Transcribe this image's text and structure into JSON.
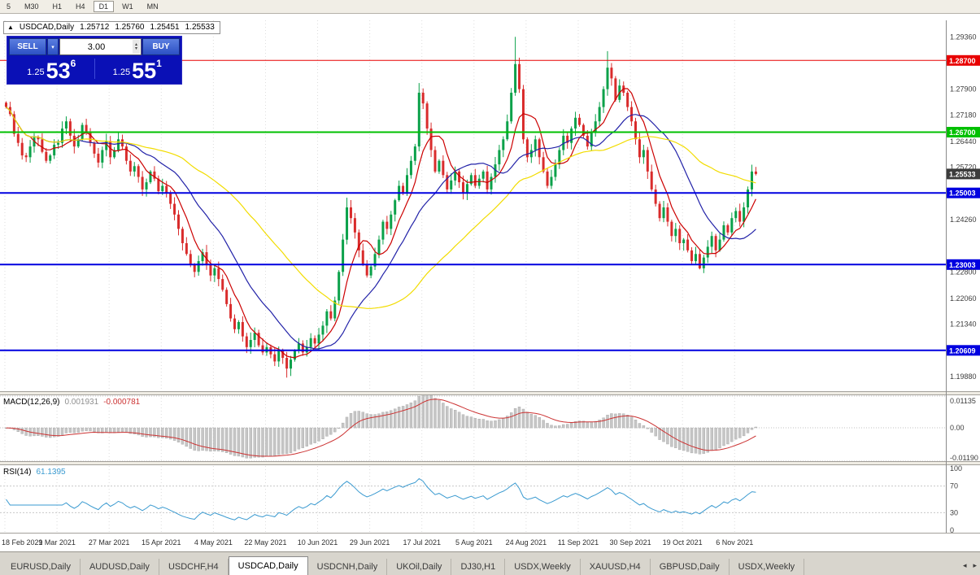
{
  "toolbar": {
    "timeframes": [
      "5",
      "M30",
      "H1",
      "H4",
      "D1",
      "W1",
      "MN"
    ],
    "active": "D1"
  },
  "chart_header": {
    "marker": "▲",
    "symbol": "USDCAD,Daily",
    "open": "1.25712",
    "high": "1.25760",
    "low": "1.25451",
    "close": "1.25533"
  },
  "trade_panel": {
    "sell_label": "SELL",
    "buy_label": "BUY",
    "volume": "3.00",
    "sell_price_prefix": "1.25",
    "sell_price_big": "53",
    "sell_price_sup": "6",
    "buy_price_prefix": "1.25",
    "buy_price_big": "55",
    "buy_price_sup": "1",
    "panel_color": "#0a10b6",
    "button_color": "#2c50c4"
  },
  "price_axis": {
    "ticks": [
      {
        "value": 1.2936,
        "label": "1.29360"
      },
      {
        "value": 1.279,
        "label": "1.27900"
      },
      {
        "value": 1.2718,
        "label": "1.27180"
      },
      {
        "value": 1.2644,
        "label": "1.26440"
      },
      {
        "value": 1.2572,
        "label": "1.25720"
      },
      {
        "value": 1.2426,
        "label": "1.24260"
      },
      {
        "value": 1.228,
        "label": "1.22800"
      },
      {
        "value": 1.2206,
        "label": "1.22060"
      },
      {
        "value": 1.2134,
        "label": "1.21340"
      },
      {
        "value": 1.1988,
        "label": "1.19880"
      }
    ]
  },
  "levels": [
    {
      "value": 1.287,
      "label": "1.28700",
      "color": "#e80000",
      "width": 1
    },
    {
      "value": 1.267,
      "label": "1.26700",
      "color": "#00c000",
      "width": 2
    },
    {
      "value": 1.25003,
      "label": "1.25003",
      "color": "#0000e0",
      "width": 2
    },
    {
      "value": 1.23003,
      "label": "1.23003",
      "color": "#0000e0",
      "width": 2
    },
    {
      "value": 1.20609,
      "label": "1.20609",
      "color": "#0000e0",
      "width": 2
    }
  ],
  "current_price": {
    "value": 1.25533,
    "label": "1.25533",
    "badge_color": "#3c3c3c"
  },
  "chart_data": {
    "type": "candlestick",
    "symbol": "USDCAD",
    "timeframe": "Daily",
    "title": "USDCAD,Daily",
    "ylim": [
      1.1947,
      1.2982
    ],
    "x_labels": [
      "18 Feb 2021",
      "9 Mar 2021",
      "27 Mar 2021",
      "15 Apr 2021",
      "4 May 2021",
      "22 May 2021",
      "10 Jun 2021",
      "29 Jun 2021",
      "17 Jul 2021",
      "5 Aug 2021",
      "24 Aug 2021",
      "11 Sep 2021",
      "30 Sep 2021",
      "19 Oct 2021",
      "6 Nov 2021"
    ],
    "bars_per_label": 13,
    "closes": [
      1.274,
      1.272,
      1.2665,
      1.264,
      1.2605,
      1.26,
      1.263,
      1.2655,
      1.265,
      1.2615,
      1.259,
      1.2605,
      1.2635,
      1.264,
      1.268,
      1.27,
      1.266,
      1.263,
      1.265,
      1.269,
      1.267,
      1.264,
      1.261,
      1.2585,
      1.262,
      1.2645,
      1.26,
      1.262,
      1.265,
      1.263,
      1.259,
      1.256,
      1.2575,
      1.2545,
      1.251,
      1.253,
      1.256,
      1.254,
      1.2505,
      1.252,
      1.25,
      1.247,
      1.244,
      1.24,
      1.236,
      1.233,
      1.23,
      1.228,
      1.231,
      1.2335,
      1.23,
      1.227,
      1.229,
      1.226,
      1.223,
      1.219,
      1.215,
      1.212,
      1.214,
      1.21,
      1.207,
      1.209,
      1.211,
      1.2075,
      1.2055,
      1.207,
      1.205,
      1.203,
      1.206,
      1.204,
      1.201,
      1.2035,
      1.206,
      1.208,
      1.2055,
      1.207,
      1.2095,
      1.208,
      1.2105,
      1.213,
      1.217,
      1.215,
      1.22,
      1.228,
      1.237,
      1.246,
      1.243,
      1.239,
      1.234,
      1.23,
      1.227,
      1.2295,
      1.233,
      1.237,
      1.242,
      1.24,
      1.244,
      1.248,
      1.252,
      1.25,
      1.255,
      1.259,
      1.263,
      1.278,
      1.275,
      1.268,
      1.262,
      1.256,
      1.259,
      1.255,
      1.251,
      1.2535,
      1.256,
      1.253,
      1.25,
      1.2525,
      1.255,
      1.252,
      1.254,
      1.256,
      1.251,
      1.2545,
      1.258,
      1.262,
      1.265,
      1.27,
      1.278,
      1.286,
      1.279,
      1.265,
      1.26,
      1.262,
      1.265,
      1.26,
      1.256,
      1.252,
      1.2545,
      1.258,
      1.262,
      1.266,
      1.264,
      1.268,
      1.271,
      1.269,
      1.266,
      1.263,
      1.267,
      1.27,
      1.274,
      1.279,
      1.285,
      1.282,
      1.276,
      1.28,
      1.278,
      1.274,
      1.27,
      1.265,
      1.26,
      1.262,
      1.256,
      1.251,
      1.247,
      1.243,
      1.246,
      1.242,
      1.238,
      1.24,
      1.236,
      1.237,
      1.234,
      1.231,
      1.233,
      1.229,
      1.232,
      1.235,
      1.238,
      1.234,
      1.237,
      1.241,
      1.239,
      1.243,
      1.245,
      1.242,
      1.246,
      1.251,
      1.256,
      1.25533
    ],
    "wick_highs": {
      "85": 1.2487,
      "103": 1.2807,
      "127": 1.2936,
      "150": 1.2896
    },
    "wick_lows": {
      "47": 1.2265,
      "70": 1.1985,
      "173": 1.2287
    },
    "up_color": "#0ba14a",
    "down_color": "#d92c2c",
    "moving_averages": [
      {
        "name": "fast",
        "period": 7,
        "color": "#cc0000"
      },
      {
        "name": "mid",
        "period": 19,
        "color": "#2222a8"
      },
      {
        "name": "slow",
        "period": 45,
        "color": "#f2dc00"
      }
    ]
  },
  "indicators": {
    "macd": {
      "label": "MACD(12,26,9)",
      "value_main": "0.001931",
      "value_signal": "-0.000781",
      "fast": 12,
      "slow": 26,
      "signal_period": 9,
      "axis_labels": [
        "0.01135",
        "0.00",
        "-0.01190"
      ],
      "ymax": 0.01135,
      "ymin": -0.0119,
      "histogram_color": "#c6c6c6",
      "signal_color": "#cc3333"
    },
    "rsi": {
      "label": "RSI(14)",
      "value": "61.1395",
      "period": 14,
      "axis_labels": [
        "100",
        "70",
        "30",
        "0"
      ],
      "guide_levels": [
        70,
        30
      ],
      "line_color": "#3a9ad0"
    }
  },
  "tabbar": {
    "tabs": [
      "EURUSD,Daily",
      "AUDUSD,Daily",
      "USDCHF,H4",
      "USDCAD,Daily",
      "USDCNH,Daily",
      "UKOil,Daily",
      "DJ30,H1",
      "USDX,Weekly",
      "XAUUSD,H4",
      "GBPUSD,Daily",
      "USDX,Weekly"
    ],
    "active_index": 3,
    "scroll_left": "◂",
    "scroll_right": "▸"
  }
}
